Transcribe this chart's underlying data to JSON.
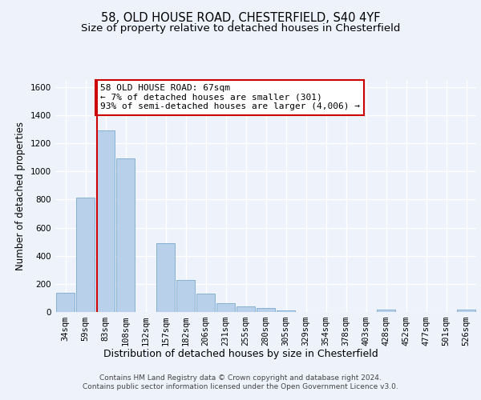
{
  "title_line1": "58, OLD HOUSE ROAD, CHESTERFIELD, S40 4YF",
  "title_line2": "Size of property relative to detached houses in Chesterfield",
  "xlabel": "Distribution of detached houses by size in Chesterfield",
  "ylabel": "Number of detached properties",
  "categories": [
    "34sqm",
    "59sqm",
    "83sqm",
    "108sqm",
    "132sqm",
    "157sqm",
    "182sqm",
    "206sqm",
    "231sqm",
    "255sqm",
    "280sqm",
    "305sqm",
    "329sqm",
    "354sqm",
    "378sqm",
    "403sqm",
    "428sqm",
    "452sqm",
    "477sqm",
    "501sqm",
    "526sqm"
  ],
  "values": [
    135,
    815,
    1290,
    1090,
    0,
    490,
    230,
    130,
    65,
    38,
    26,
    12,
    0,
    0,
    0,
    0,
    18,
    0,
    0,
    0,
    15
  ],
  "bar_color": "#b8d0ea",
  "bar_edge_color": "#7aaad0",
  "vline_color": "#cc0000",
  "vline_position": 1.575,
  "annotation_text": "58 OLD HOUSE ROAD: 67sqm\n← 7% of detached houses are smaller (301)\n93% of semi-detached houses are larger (4,006) →",
  "annotation_box_facecolor": "#ffffff",
  "annotation_box_edgecolor": "#cc0000",
  "ylim": [
    0,
    1650
  ],
  "yticks": [
    0,
    200,
    400,
    600,
    800,
    1000,
    1200,
    1400,
    1600
  ],
  "bg_color": "#eef2fb",
  "grid_color": "#ffffff",
  "title_fontsize": 10.5,
  "subtitle_fontsize": 9.5,
  "xlabel_fontsize": 9,
  "ylabel_fontsize": 8.5,
  "tick_fontsize": 7.5,
  "annotation_fontsize": 8,
  "footer_fontsize": 6.5,
  "footer_line1": "Contains HM Land Registry data © Crown copyright and database right 2024.",
  "footer_line2": "Contains public sector information licensed under the Open Government Licence v3.0."
}
